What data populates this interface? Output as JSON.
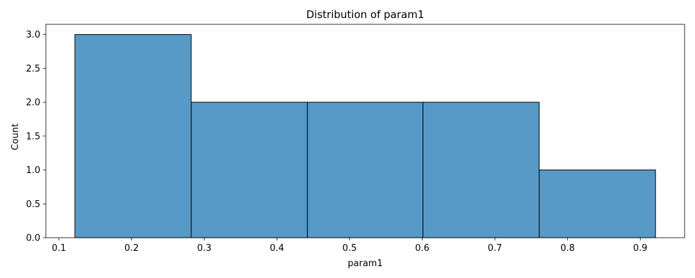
{
  "chart_data": {
    "type": "bar",
    "subtype": "histogram",
    "title": "Distribution of param1",
    "xlabel": "param1",
    "ylabel": "Count",
    "bins": [
      {
        "start": 0.122,
        "end": 0.282,
        "count": 3
      },
      {
        "start": 0.282,
        "end": 0.442,
        "count": 2
      },
      {
        "start": 0.442,
        "end": 0.601,
        "count": 2
      },
      {
        "start": 0.601,
        "end": 0.761,
        "count": 2
      },
      {
        "start": 0.761,
        "end": 0.921,
        "count": 1
      }
    ],
    "xlim": [
      0.082,
      0.961
    ],
    "ylim": [
      0,
      3.15
    ],
    "xticks": [
      "0.1",
      "0.2",
      "0.3",
      "0.4",
      "0.5",
      "0.6",
      "0.7",
      "0.8",
      "0.9"
    ],
    "yticks": [
      "0.0",
      "0.5",
      "1.0",
      "1.5",
      "2.0",
      "2.5",
      "3.0"
    ],
    "grid": false,
    "colors": {
      "bar_fill": "#5799c7",
      "bar_edge": "#000000",
      "axis": "#000000"
    }
  }
}
